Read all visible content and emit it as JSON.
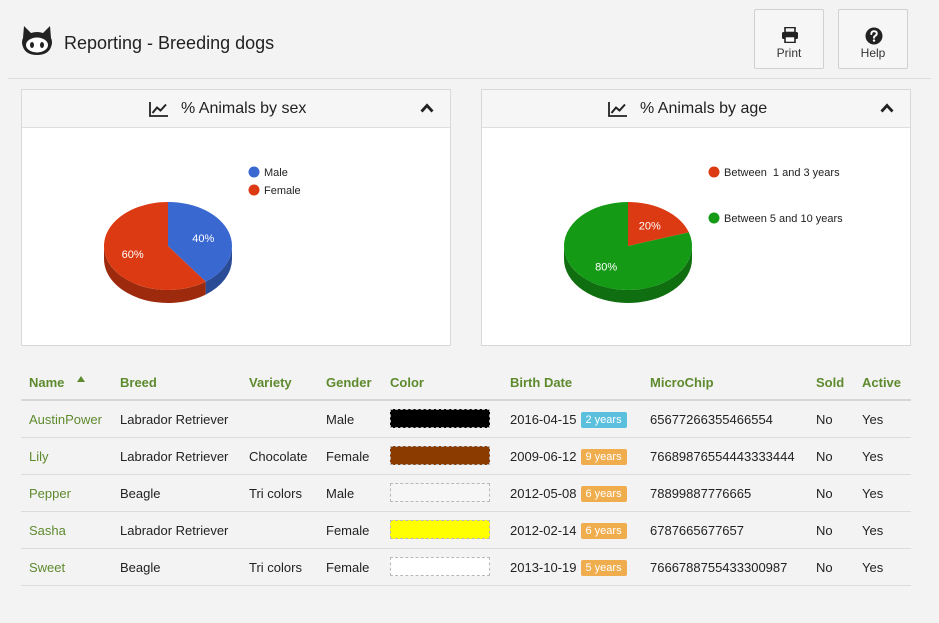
{
  "header": {
    "title": "Reporting - Breeding dogs",
    "print_label": "Print",
    "help_label": "Help"
  },
  "panels": [
    {
      "title": "% Animals by sex",
      "chart_index": 0
    },
    {
      "title": "% Animals by age",
      "chart_index": 1
    }
  ],
  "chart_data": [
    {
      "type": "pie",
      "title": "% Animals by sex",
      "categories": [
        "Male",
        "Female"
      ],
      "values": [
        40,
        60
      ],
      "labels": [
        "40%",
        "60%"
      ],
      "colors": [
        "#3a68d1",
        "#dc3a12"
      ],
      "legend_position": "top-right"
    },
    {
      "type": "pie",
      "title": "% Animals by age",
      "categories": [
        "Between  1 and 3 years",
        "Between 5 and 10 years"
      ],
      "values": [
        20,
        80
      ],
      "labels": [
        "20%",
        "80%"
      ],
      "colors": [
        "#dc3a12",
        "#159a16"
      ],
      "legend_position": "top-right"
    }
  ],
  "table": {
    "columns": [
      "Name",
      "Breed",
      "Variety",
      "Gender",
      "Color",
      "Birth Date",
      "MicroChip",
      "Sold",
      "Active"
    ],
    "rows": [
      {
        "name": "AustinPower",
        "breed": "Labrador Retriever",
        "variety": "",
        "gender": "Male",
        "color": "#000000",
        "birth": "2016-04-15",
        "age": "2 years",
        "age_color": "#5bc0de",
        "chip": "65677266355466554",
        "sold": "No",
        "active": "Yes"
      },
      {
        "name": "Lily",
        "breed": "Labrador Retriever",
        "variety": "Chocolate",
        "gender": "Female",
        "color": "#8b3a00",
        "birth": "2009-06-12",
        "age": "9 years",
        "age_color": "#f0ad4e",
        "chip": "76689876554443333444",
        "sold": "No",
        "active": "Yes"
      },
      {
        "name": "Pepper",
        "breed": "Beagle",
        "variety": "Tri colors",
        "gender": "Male",
        "color": "#f6f6f6",
        "birth": "2012-05-08",
        "age": "6 years",
        "age_color": "#f0ad4e",
        "chip": "78899887776665",
        "sold": "No",
        "active": "Yes"
      },
      {
        "name": "Sasha",
        "breed": "Labrador Retriever",
        "variety": "",
        "gender": "Female",
        "color": "#ffff00",
        "birth": "2012-02-14",
        "age": "6 years",
        "age_color": "#f0ad4e",
        "chip": "6787665677657",
        "sold": "No",
        "active": "Yes"
      },
      {
        "name": "Sweet",
        "breed": "Beagle",
        "variety": "Tri colors",
        "gender": "Female",
        "color": "#ffffff",
        "birth": "2013-10-19",
        "age": "5 years",
        "age_color": "#f0ad4e",
        "chip": "7666788755433300987",
        "sold": "No",
        "active": "Yes"
      }
    ]
  }
}
